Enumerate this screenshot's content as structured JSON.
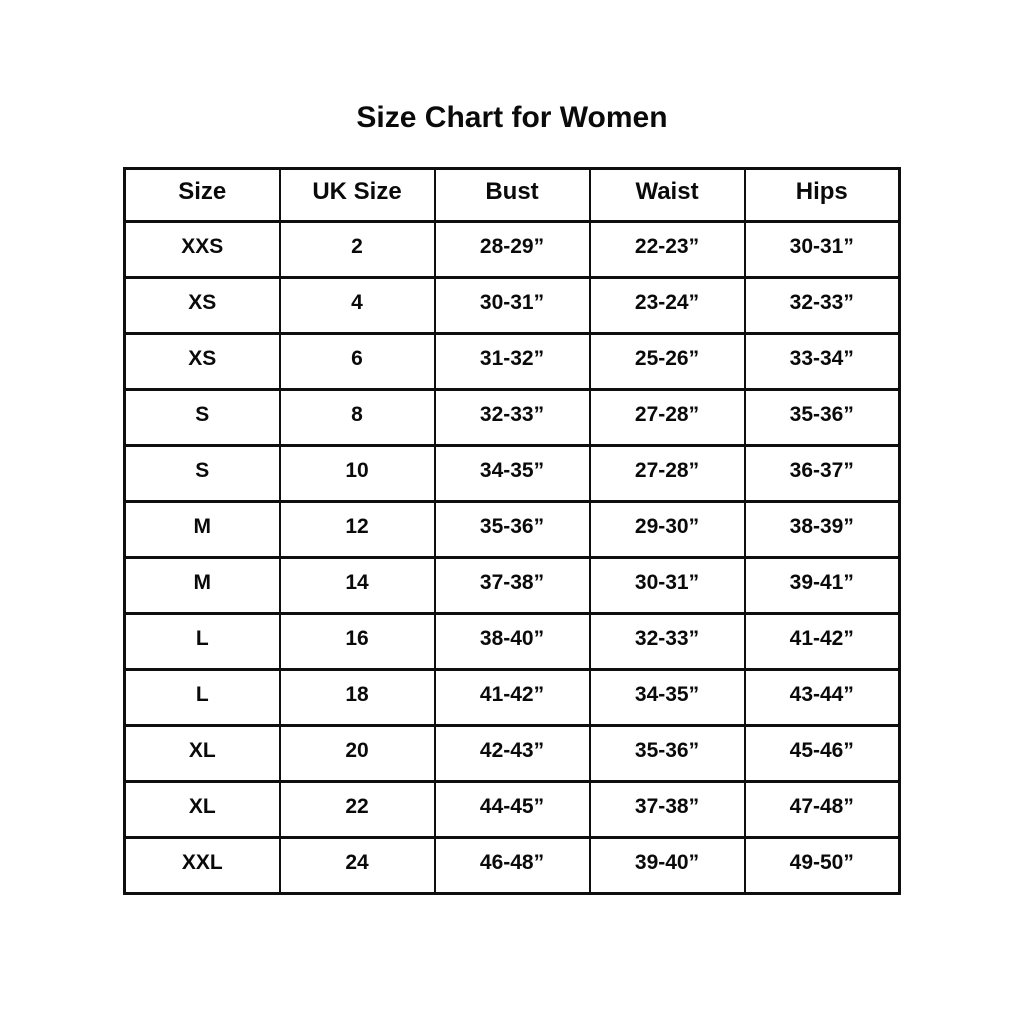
{
  "title": "Size Chart for Women",
  "colors": {
    "background": "#ffffff",
    "text": "#0a0a0a",
    "border": "#0f0f0f"
  },
  "chart_data": {
    "type": "table",
    "title": "Size Chart for Women",
    "columns": [
      "Size",
      "UK Size",
      "Bust",
      "Waist",
      "Hips"
    ],
    "rows": [
      [
        "XXS",
        "2",
        "28-29”",
        "22-23”",
        "30-31”"
      ],
      [
        "XS",
        "4",
        "30-31”",
        "23-24”",
        "32-33”"
      ],
      [
        "XS",
        "6",
        "31-32”",
        "25-26”",
        "33-34”"
      ],
      [
        "S",
        "8",
        "32-33”",
        "27-28”",
        "35-36”"
      ],
      [
        "S",
        "10",
        "34-35”",
        "27-28”",
        "36-37”"
      ],
      [
        "M",
        "12",
        "35-36”",
        "29-30”",
        "38-39”"
      ],
      [
        "M",
        "14",
        "37-38”",
        "30-31”",
        "39-41”"
      ],
      [
        "L",
        "16",
        "38-40”",
        "32-33”",
        "41-42”"
      ],
      [
        "L",
        "18",
        "41-42”",
        "34-35”",
        "43-44”"
      ],
      [
        "XL",
        "20",
        "42-43”",
        "35-36”",
        "45-46”"
      ],
      [
        "XL",
        "22",
        "44-45”",
        "37-38”",
        "47-48”"
      ],
      [
        "XXL",
        "24",
        "46-48”",
        "39-40”",
        "49-50”"
      ]
    ]
  }
}
